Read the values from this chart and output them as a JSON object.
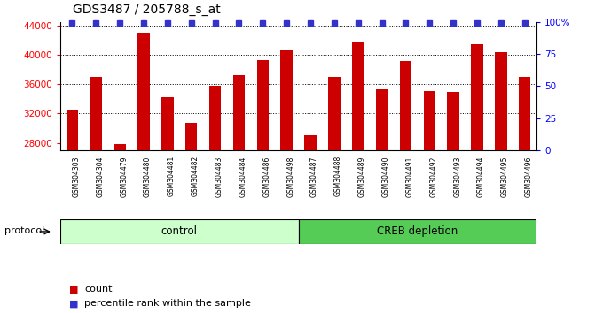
{
  "title": "GDS3487 / 205788_s_at",
  "samples": [
    "GSM304303",
    "GSM304304",
    "GSM304479",
    "GSM304480",
    "GSM304481",
    "GSM304482",
    "GSM304483",
    "GSM304484",
    "GSM304486",
    "GSM304498",
    "GSM304487",
    "GSM304488",
    "GSM304489",
    "GSM304490",
    "GSM304491",
    "GSM304492",
    "GSM304493",
    "GSM304494",
    "GSM304495",
    "GSM304496"
  ],
  "counts": [
    32500,
    37000,
    27800,
    43000,
    34200,
    30700,
    35800,
    37200,
    39300,
    40600,
    29000,
    37000,
    41700,
    35300,
    39200,
    35100,
    34900,
    41400,
    40400,
    37000
  ],
  "bar_color": "#cc0000",
  "dot_color": "#3333cc",
  "ylim_left": [
    27000,
    44500
  ],
  "yticks_left": [
    28000,
    32000,
    36000,
    40000,
    44000
  ],
  "ylim_right": [
    0,
    100
  ],
  "yticks_right": [
    0,
    25,
    50,
    75,
    100
  ],
  "yticklabels_right": [
    "0",
    "25",
    "50",
    "75",
    "100%"
  ],
  "bg_color": "#ffffff",
  "xtick_bg_color": "#c8c8c8",
  "control_color": "#ccffcc",
  "creb_color": "#55cc55",
  "control_label": "control",
  "creb_label": "CREB depletion",
  "protocol_label": "protocol",
  "legend_count": "count",
  "legend_percentile": "percentile rank within the sample",
  "n_control": 10,
  "n_creb": 10
}
